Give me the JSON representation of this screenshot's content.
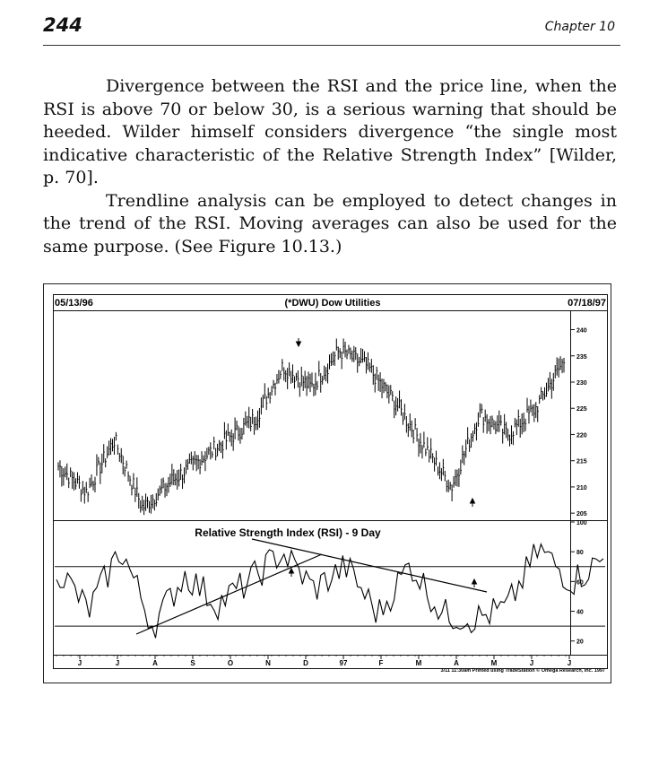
{
  "header": {
    "page_number": "244",
    "chapter": "Chapter 10"
  },
  "paragraphs": [
    "Divergence between the RSI and the price line, when the RSI is above 70 or below 30, is a serious warning that should be heeded. Wilder himself considers divergence “the single most indicative characteristic of the Relative Strength Index” [Wilder, p. 70].",
    "Trendline analysis can be employed to detect changes in the trend of the RSI. Moving averages can also be used for the same purpose. (See Figure 10.13.)"
  ],
  "figure": {
    "start_date": "05/13/96",
    "end_date": "07/18/97",
    "price_title": "(*DWU) Dow Utilities",
    "rsi_title": "Relative Strength Index (RSI) - 9 Day",
    "price_ticks": [
      "240",
      "235",
      "230",
      "225",
      "220",
      "215",
      "210",
      "205"
    ],
    "rsi_ticks": [
      "100",
      "80",
      "60",
      "40",
      "20"
    ],
    "month_labels": [
      "J",
      "J",
      "A",
      "S",
      "O",
      "N",
      "D",
      "97",
      "F",
      "M",
      "A",
      "M",
      "J",
      "J"
    ],
    "credit": "3/11 11:30am Printed using TradeStation © Omega Research, Inc. 1997"
  },
  "chart_data": [
    {
      "type": "line",
      "title": "(*DWU) Dow Utilities",
      "subtitle": "05/13/96 – 07/18/97",
      "xlabel": "",
      "ylabel": "",
      "x": [
        "May 96",
        "Jun 96",
        "Jul 96",
        "Jul 96",
        "Aug 96",
        "Sep 96",
        "Oct 96",
        "Nov 96",
        "Nov 96",
        "Dec 96",
        "Dec 96",
        "Jan 97",
        "Feb 97",
        "Mar 97",
        "Apr 97",
        "Apr 97",
        "May 97",
        "Jun 97",
        "Jul 97"
      ],
      "series": [
        {
          "name": "",
          "values": [
            214,
            209,
            219,
            206,
            211,
            215,
            219,
            223,
            233,
            229,
            236,
            233,
            226,
            218,
            210,
            224,
            220,
            225,
            234
          ]
        }
      ],
      "ylim": [
        204,
        243
      ]
    },
    {
      "type": "line",
      "title": "Relative Strength Index (RSI) - 9 Day",
      "xlabel": "",
      "ylabel": "",
      "x": [
        "May 96",
        "Jun 96",
        "Jun 96",
        "Jul 96",
        "Aug 96",
        "Sep 96",
        "Oct 96",
        "Nov 96",
        "Nov 96",
        "Dec 96",
        "Jan 97",
        "Feb 97",
        "Mar 97",
        "Apr 97",
        "Apr 97",
        "May 97",
        "Jun 97",
        "Jul 97"
      ],
      "series": [
        {
          "name": "",
          "values": [
            70,
            40,
            82,
            30,
            65,
            45,
            60,
            80,
            55,
            70,
            38,
            72,
            38,
            35,
            42,
            82,
            60,
            75
          ]
        }
      ],
      "ylim": [
        12,
        100
      ],
      "annotations": [
        "trendline",
        "trendline",
        "70",
        "30"
      ]
    }
  ]
}
